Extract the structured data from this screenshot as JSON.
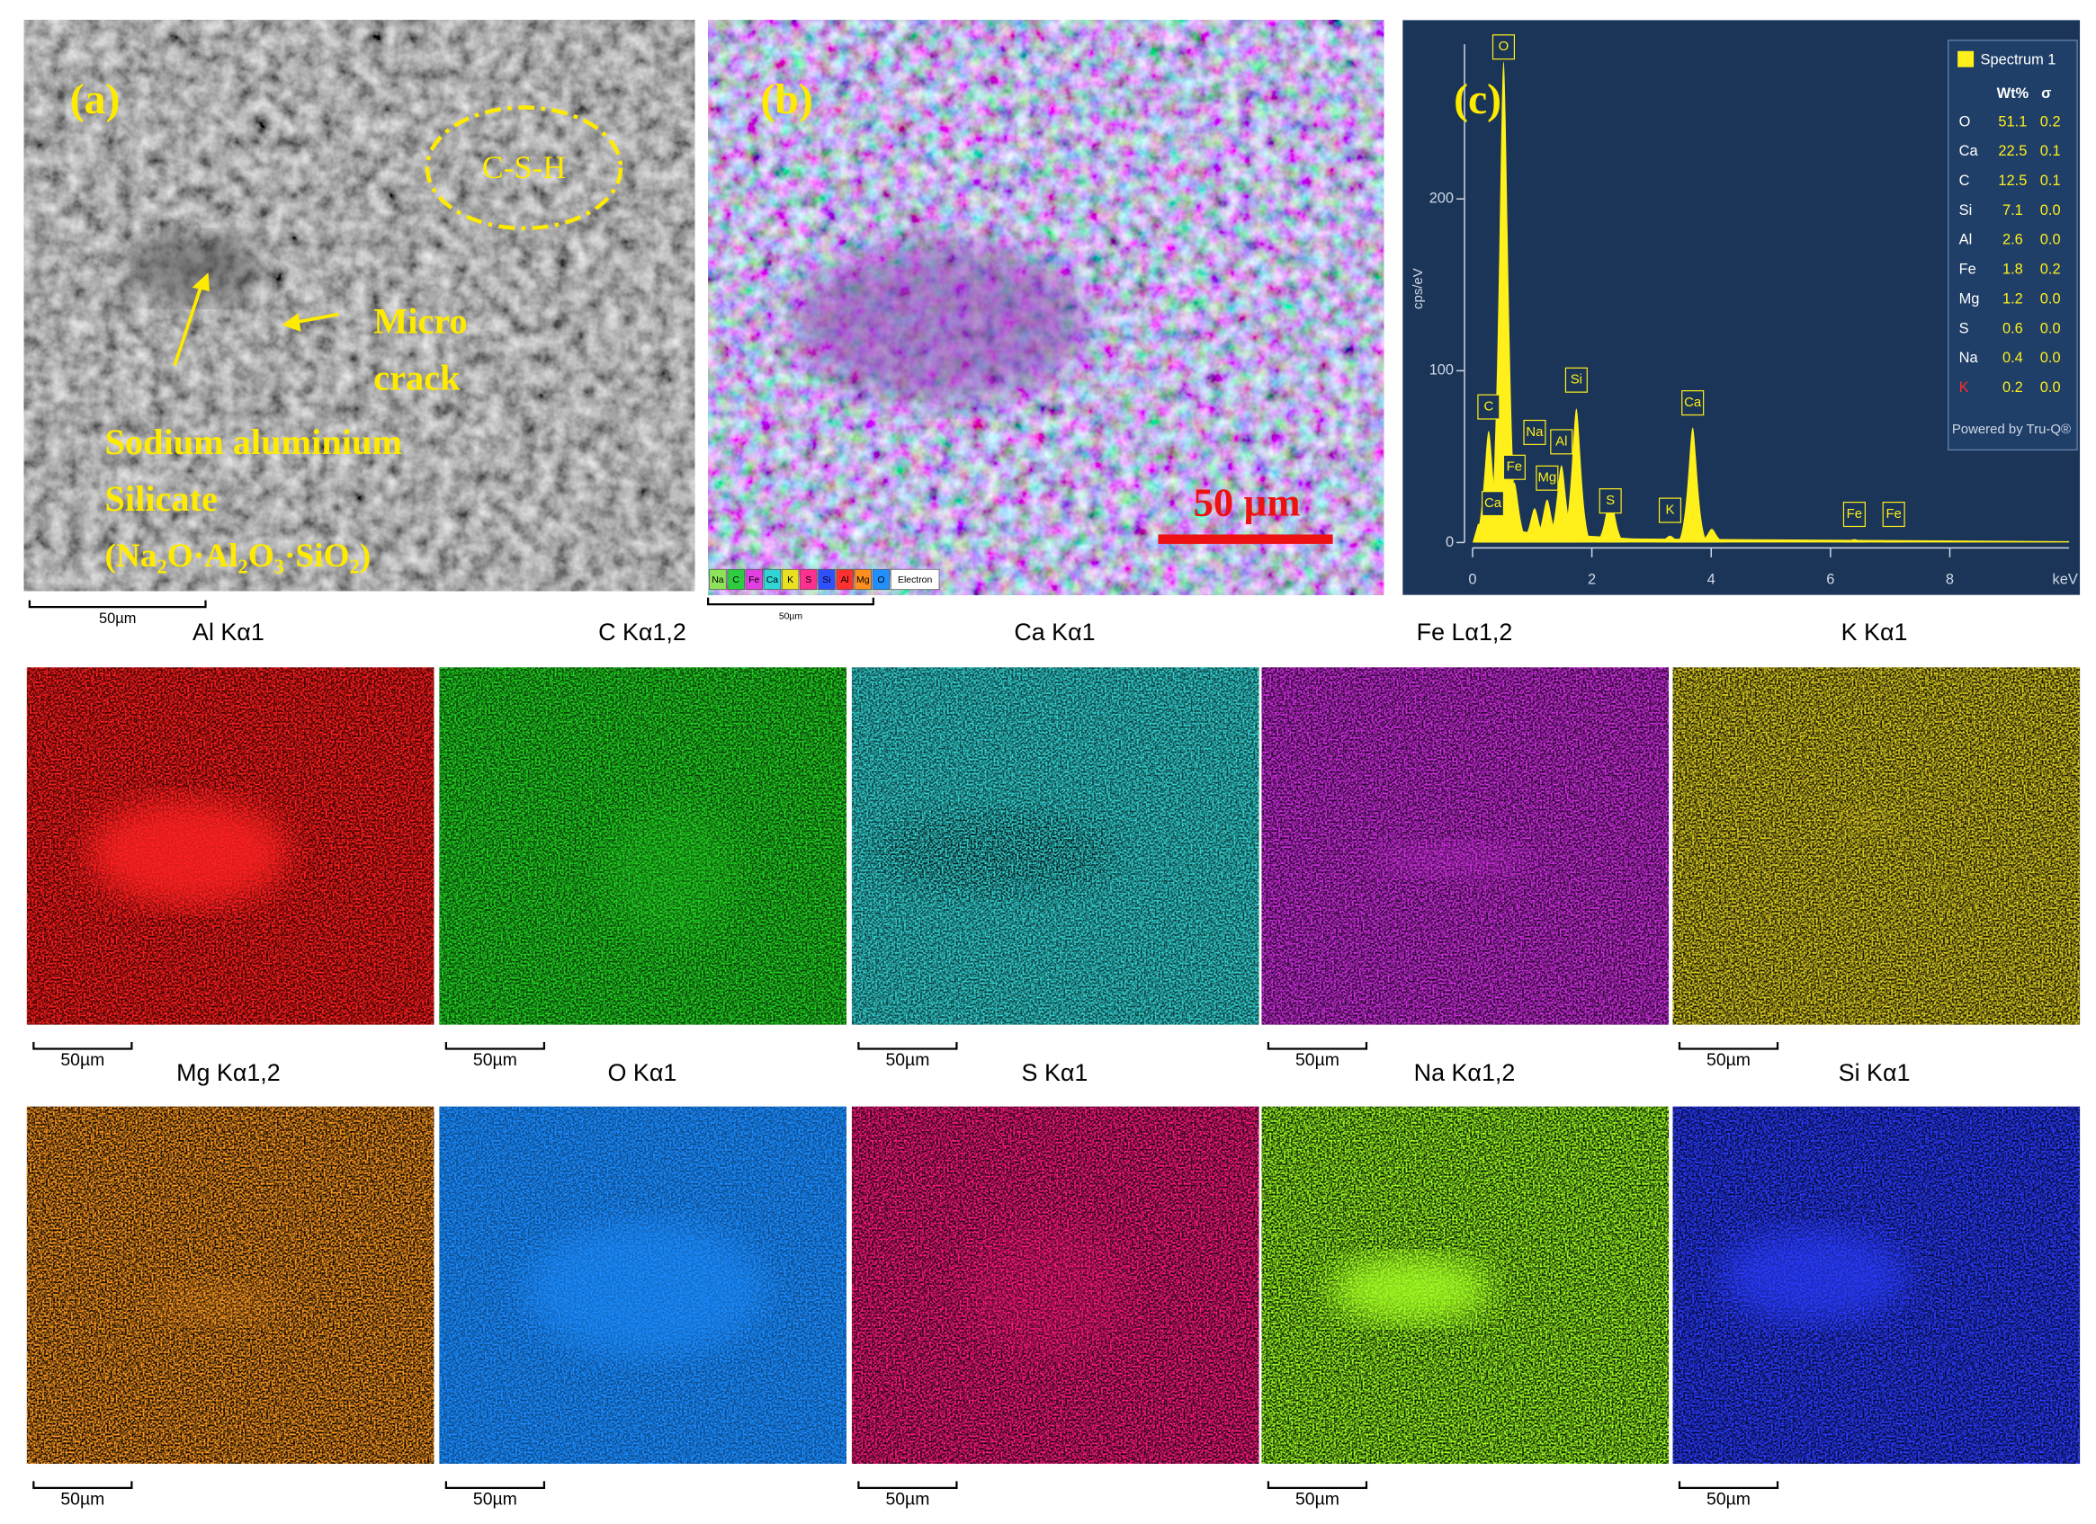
{
  "panel_a": {
    "label": "(a)",
    "annotations": [
      "C-S-H",
      "Micro",
      "crack",
      "Sodium aluminium",
      "Silicate",
      "(Na₂O·Al₂O₃·SiO₂)"
    ],
    "scale_bar": "50µm"
  },
  "panel_b": {
    "label": "(b)",
    "scale_label": "50 µm",
    "legend": [
      "Na",
      "C",
      "Fe",
      "Ca",
      "K",
      "S",
      "Si",
      "Al",
      "Mg",
      "O",
      "Electron"
    ],
    "scale_bar": "50µm"
  },
  "panel_c": {
    "label": "(c)",
    "spectrum": {
      "type": "spectrum",
      "y_label": "cps/eV",
      "x_unit": "keV",
      "xlim": [
        0,
        10
      ],
      "ylim": [
        0,
        290
      ],
      "xticks": [
        0,
        2,
        4,
        6,
        8
      ],
      "yticks": [
        0,
        100,
        200
      ],
      "peaks": [
        {
          "label": "O",
          "energy": 0.52,
          "counts": 280
        },
        {
          "label": "C",
          "energy": 0.27,
          "counts": 65
        },
        {
          "label": "Ca",
          "energy": 0.34,
          "counts": 15
        },
        {
          "label": "Fe",
          "energy": 0.7,
          "counts": 35
        },
        {
          "label": "Na",
          "energy": 1.04,
          "counts": 20
        },
        {
          "label": "Mg",
          "energy": 1.25,
          "counts": 25
        },
        {
          "label": "Al",
          "energy": 1.49,
          "counts": 45
        },
        {
          "label": "Si",
          "energy": 1.74,
          "counts": 78
        },
        {
          "label": "S",
          "energy": 2.31,
          "counts": 28
        },
        {
          "label": "K",
          "energy": 3.31,
          "counts": 4
        },
        {
          "label": "Ca",
          "energy": 3.69,
          "counts": 67
        },
        {
          "label": null,
          "energy": 4.01,
          "counts": 8
        },
        {
          "label": "Fe",
          "energy": 6.4,
          "counts": 2
        },
        {
          "label": "Fe",
          "energy": 7.06,
          "counts": 1
        }
      ]
    },
    "table": {
      "title": "Spectrum 1",
      "columns": [
        "Wt%",
        "σ"
      ],
      "rows": [
        [
          "O",
          "51.1",
          "0.2"
        ],
        [
          "Ca",
          "22.5",
          "0.1"
        ],
        [
          "C",
          "12.5",
          "0.1"
        ],
        [
          "Si",
          "7.1",
          "0.0"
        ],
        [
          "Al",
          "2.6",
          "0.0"
        ],
        [
          "Fe",
          "1.8",
          "0.2"
        ],
        [
          "Mg",
          "1.2",
          "0.0"
        ],
        [
          "S",
          "0.6",
          "0.0"
        ],
        [
          "Na",
          "0.4",
          "0.0"
        ],
        [
          "K",
          "0.2",
          "0.0"
        ]
      ],
      "footer": "Powered by Tru-Q®"
    }
  },
  "maps": [
    {
      "label": "Al Kα1",
      "scale_bar": "50µm"
    },
    {
      "label": "C Kα1,2",
      "scale_bar": "50µm"
    },
    {
      "label": "Ca Kα1",
      "scale_bar": "50µm"
    },
    {
      "label": "Fe Lα1,2",
      "scale_bar": "50µm"
    },
    {
      "label": "K Kα1",
      "scale_bar": "50µm"
    },
    {
      "label": "Mg Kα1,2",
      "scale_bar": "50µm"
    },
    {
      "label": "O Kα1",
      "scale_bar": "50µm"
    },
    {
      "label": "S Kα1",
      "scale_bar": "50µm"
    },
    {
      "label": "Na Kα1,2",
      "scale_bar": "50µm"
    },
    {
      "label": "Si Kα1",
      "scale_bar": "50µm"
    }
  ]
}
